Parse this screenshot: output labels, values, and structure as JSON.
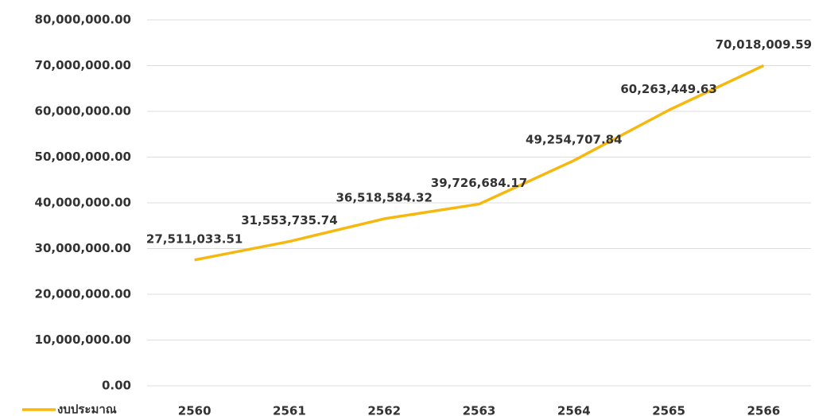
{
  "chart_data": {
    "type": "line",
    "categories": [
      "2560",
      "2561",
      "2562",
      "2563",
      "2564",
      "2565",
      "2566"
    ],
    "series": [
      {
        "name": "งบประมาณ",
        "color": "#f6b80f",
        "values": [
          27511033.51,
          31553735.74,
          36518584.32,
          39726684.17,
          49254707.84,
          60263449.63,
          70018009.59
        ],
        "value_labels": [
          "27,511,033.51",
          "31,553,735.74",
          "36,518,584.32",
          "39,726,684.17",
          "49,254,707.84",
          "60,263,449.63",
          "70,018,009.59"
        ]
      }
    ],
    "ylim": [
      0,
      80000000
    ],
    "yticks": [
      {
        "value": 0,
        "label": "0.00"
      },
      {
        "value": 10000000,
        "label": "10,000,000.00"
      },
      {
        "value": 20000000,
        "label": "20,000,000.00"
      },
      {
        "value": 30000000,
        "label": "30,000,000.00"
      },
      {
        "value": 40000000,
        "label": "40,000,000.00"
      },
      {
        "value": 50000000,
        "label": "50,000,000.00"
      },
      {
        "value": 60000000,
        "label": "60,000,000.00"
      },
      {
        "value": 70000000,
        "label": "70,000,000.00"
      },
      {
        "value": 80000000,
        "label": "80,000,000.00"
      }
    ],
    "grid": true,
    "legend": "bottom-left"
  }
}
